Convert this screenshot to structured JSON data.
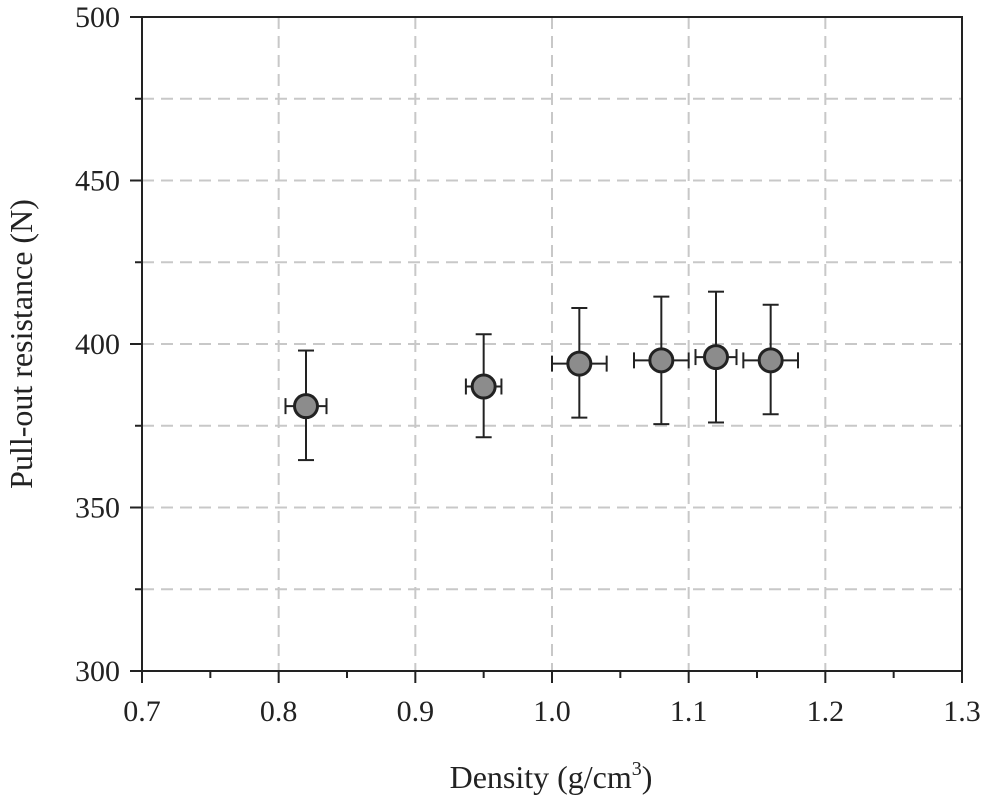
{
  "chart_data": {
    "type": "scatter",
    "title": "",
    "xlabel_main": "Density (g/cm",
    "xlabel_sup": "3",
    "xlabel_close": ")",
    "ylabel": "Pull-out resistance (N)",
    "xlim": [
      0.7,
      1.3
    ],
    "ylim": [
      300,
      500
    ],
    "x_ticks": [
      0.7,
      0.8,
      0.9,
      1.0,
      1.1,
      1.2,
      1.3
    ],
    "x_tick_labels": [
      "0.7",
      "0.8",
      "0.9",
      "1.0",
      "1.1",
      "1.2",
      "1.3"
    ],
    "x_minor_ticks": [
      0.75,
      0.85,
      0.95,
      1.05,
      1.15,
      1.25
    ],
    "y_ticks": [
      300,
      350,
      400,
      450,
      500
    ],
    "y_tick_labels": [
      "300",
      "350",
      "400",
      "450",
      "500"
    ],
    "y_minor_ticks": [
      325,
      375,
      425,
      475
    ],
    "grid": true,
    "grid_style": "dashed",
    "marker_fill": "#8c8c8c",
    "marker_edge": "#222222",
    "series": [
      {
        "name": "Pull-out resistance",
        "points": [
          {
            "x": 0.82,
            "y": 381,
            "y_low": 364.5,
            "y_high": 398,
            "x_low": 0.805,
            "x_high": 0.835
          },
          {
            "x": 0.95,
            "y": 387,
            "y_low": 371.5,
            "y_high": 403,
            "x_low": 0.937,
            "x_high": 0.963
          },
          {
            "x": 1.02,
            "y": 394,
            "y_low": 377.5,
            "y_high": 411,
            "x_low": 1.0,
            "x_high": 1.04
          },
          {
            "x": 1.08,
            "y": 395,
            "y_low": 375.5,
            "y_high": 414.5,
            "x_low": 1.06,
            "x_high": 1.1
          },
          {
            "x": 1.12,
            "y": 396,
            "y_low": 376,
            "y_high": 416,
            "x_low": 1.105,
            "x_high": 1.135
          },
          {
            "x": 1.16,
            "y": 395,
            "y_low": 378.5,
            "y_high": 412,
            "x_low": 1.14,
            "x_high": 1.18
          }
        ]
      }
    ]
  }
}
